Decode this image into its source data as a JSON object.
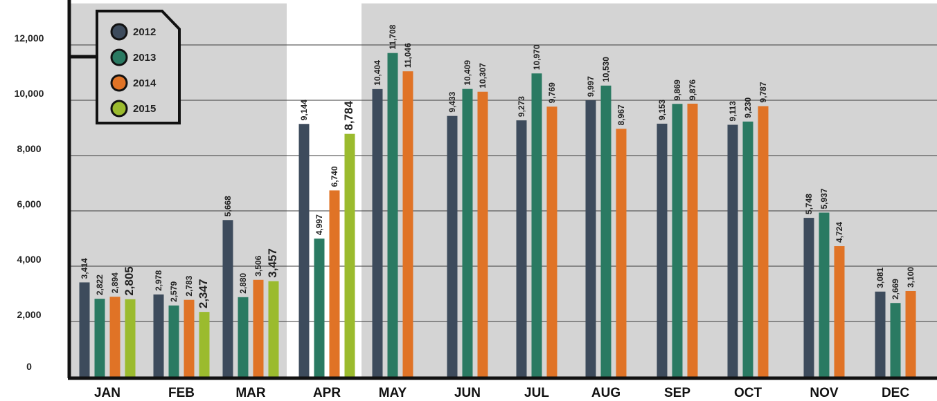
{
  "chart_data": {
    "type": "bar",
    "categories": [
      "JAN",
      "FEB",
      "MAR",
      "APR",
      "MAY",
      "JUN",
      "JUL",
      "AUG",
      "SEP",
      "OCT",
      "NOV",
      "DEC"
    ],
    "series": [
      {
        "name": "2012",
        "color": "#3d4b5c",
        "values": [
          3414,
          2978,
          5668,
          9144,
          10404,
          9433,
          9273,
          9997,
          9153,
          9113,
          5748,
          3081
        ]
      },
      {
        "name": "2013",
        "color": "#2a7a62",
        "values": [
          2822,
          2579,
          2880,
          4997,
          11708,
          10409,
          10970,
          10530,
          9869,
          9230,
          5937,
          2669
        ]
      },
      {
        "name": "2014",
        "color": "#e07326",
        "values": [
          2894,
          2783,
          3506,
          6740,
          11046,
          10307,
          9769,
          8967,
          9876,
          9787,
          4724,
          3100
        ]
      },
      {
        "name": "2015",
        "color": "#9bbb2e",
        "values": [
          2805,
          2347,
          3457,
          8784,
          null,
          null,
          null,
          null,
          null,
          null,
          null,
          null
        ]
      }
    ],
    "value_labels": [
      [
        "3,414",
        "2,978",
        "5,668",
        "9,144",
        "10,404",
        "9,433",
        "9,273",
        "9,997",
        "9,153",
        "9,113",
        "5,748",
        "3,081"
      ],
      [
        "2,822",
        "2,579",
        "2,880",
        "4,997",
        "11,708",
        "10,409",
        "10,970",
        "10,530",
        "9,869",
        "9,230",
        "5,937",
        "2,669"
      ],
      [
        "2,894",
        "2,783",
        "3,506",
        "6,740",
        "11,046",
        "10,307",
        "9,769",
        "8,967",
        "9,876",
        "9,787",
        "4,724",
        "3,100"
      ],
      [
        "2,805",
        "2,347",
        "3,457",
        "8,784",
        null,
        null,
        null,
        null,
        null,
        null,
        null,
        null
      ]
    ],
    "ytick_labels": [
      "0",
      "2,000",
      "4,000",
      "6,000",
      "8,000",
      "10,000",
      "12,000"
    ],
    "ytick_values": [
      0,
      2000,
      4000,
      6000,
      8000,
      10000,
      12000
    ],
    "ylim": [
      0,
      13000
    ],
    "grid": true,
    "legend": {
      "position": "top-left",
      "entries": [
        "2012",
        "2013",
        "2014",
        "2015"
      ]
    },
    "shaded_panel_color": "#d4d4d4",
    "grid_color": "#3a3a3a",
    "axis_color": "#111111"
  }
}
